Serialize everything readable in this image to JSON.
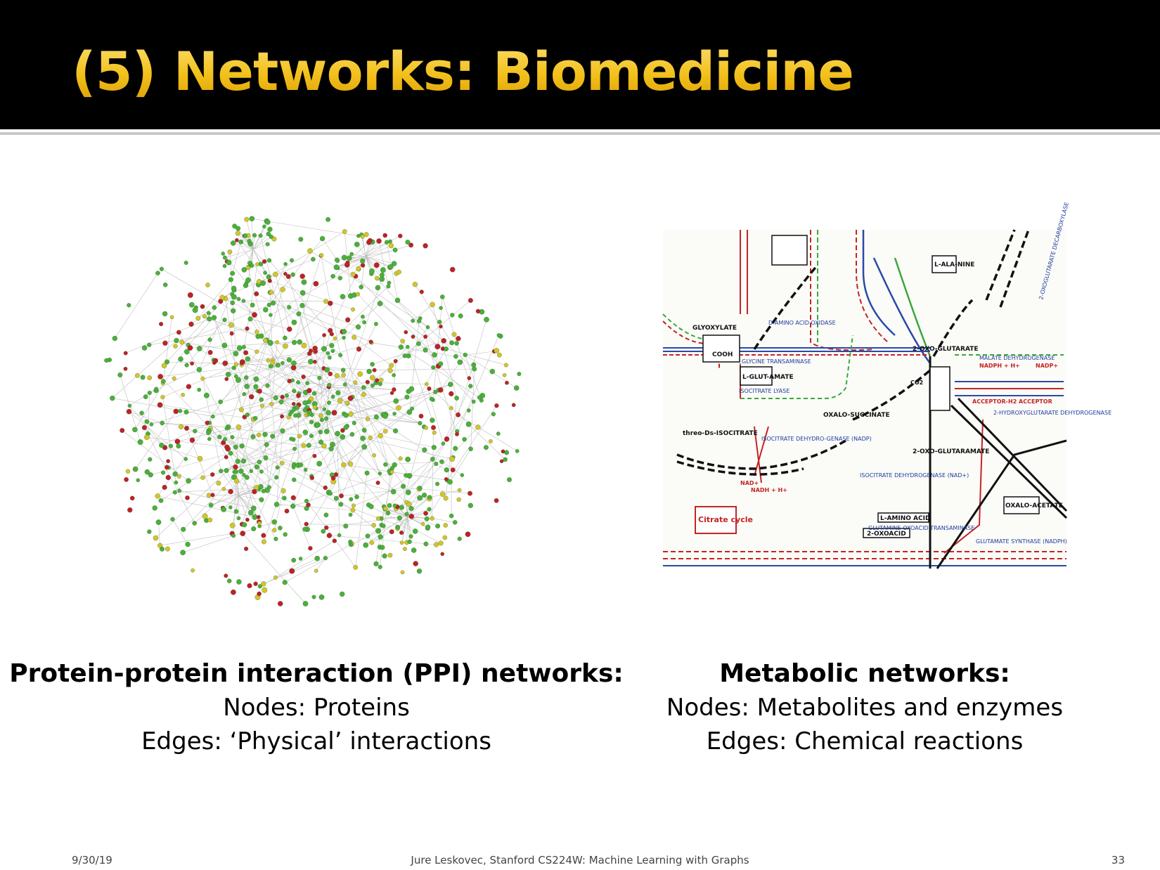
{
  "slide": {
    "title": "(5) Networks: Biomedicine",
    "left_caption": {
      "heading": "Protein-protein interaction (PPI) networks:",
      "lines": [
        "Nodes: Proteins",
        "Edges: ‘Physical’ interactions"
      ]
    },
    "right_caption": {
      "heading": "Metabolic networks:",
      "lines": [
        "Nodes: Metabolites and enzymes",
        "Edges: Chemical reactions"
      ]
    },
    "footer": {
      "date": "9/30/19",
      "center": "Jure Leskovec, Stanford CS224W: Machine Learning with Graphs",
      "page": "33"
    }
  },
  "ppi_network": {
    "node_colors": [
      "#4caf3c",
      "#4caf3c",
      "#4caf3c",
      "#c0202a",
      "#d4c42c"
    ],
    "edge_color": "#8a8a8a"
  },
  "metabolic_map": {
    "labels": {
      "glyoxylate": "GLYOXYLATE",
      "oxoglutarate": "2-OXO-GLUTARATE",
      "oxalosuccinate": "OXALO-SUCCINATE",
      "isocitrate": "threo-Ds-ISOCITRATE",
      "glutaramate": "2-OXO-GLUTARAMATE",
      "malate_dh": "MALATE DEHYDROGENASE",
      "isocitrate_lyase": "ISOCITRATE LYASE",
      "glycine_transaminase": "GLYCINE TRANSAMINASE",
      "isocitrate_dh_nadp": "ISOCITRATE DEHYDRO-GENASE (NADP)",
      "isocitrate_dh_nad": "ISOCITRATE DEHYDROGENASE (NAD+)",
      "citrate_cycle": "Citrate cycle",
      "l_glutamate": "L-GLUT-AMATE",
      "l_alanine": "L-ALA-NINE",
      "l_amino_acid": "L-AMINO ACID",
      "oxoacid": "2-OXOACID",
      "oxaloacetate": "OXALO-ACETATE",
      "glutamine_oxoacid": "GLUTAMINE-OXOACID TRANSAMINASE",
      "glutamate_synthase": "GLUTAMATE SYNTHASE (NADPH)",
      "acceptor": "ACCEPTOR-H2 ACCEPTOR",
      "hydroxyglutarate_dh": "2-HYDROXYGLUTARATE DEHYDROGENASE",
      "d_amino_oxidase": "D-AMINO ACID OXIDASE",
      "oxoglutarate_decarboxylase": "2-OXOGLUTARATE DECARBOXYLASE",
      "nadph": "NADPH + H+",
      "nadp": "NADP+",
      "nadh": "NADH + H+",
      "nad": "NAD+",
      "co2": "CO2",
      "cooh": "COOH"
    }
  }
}
